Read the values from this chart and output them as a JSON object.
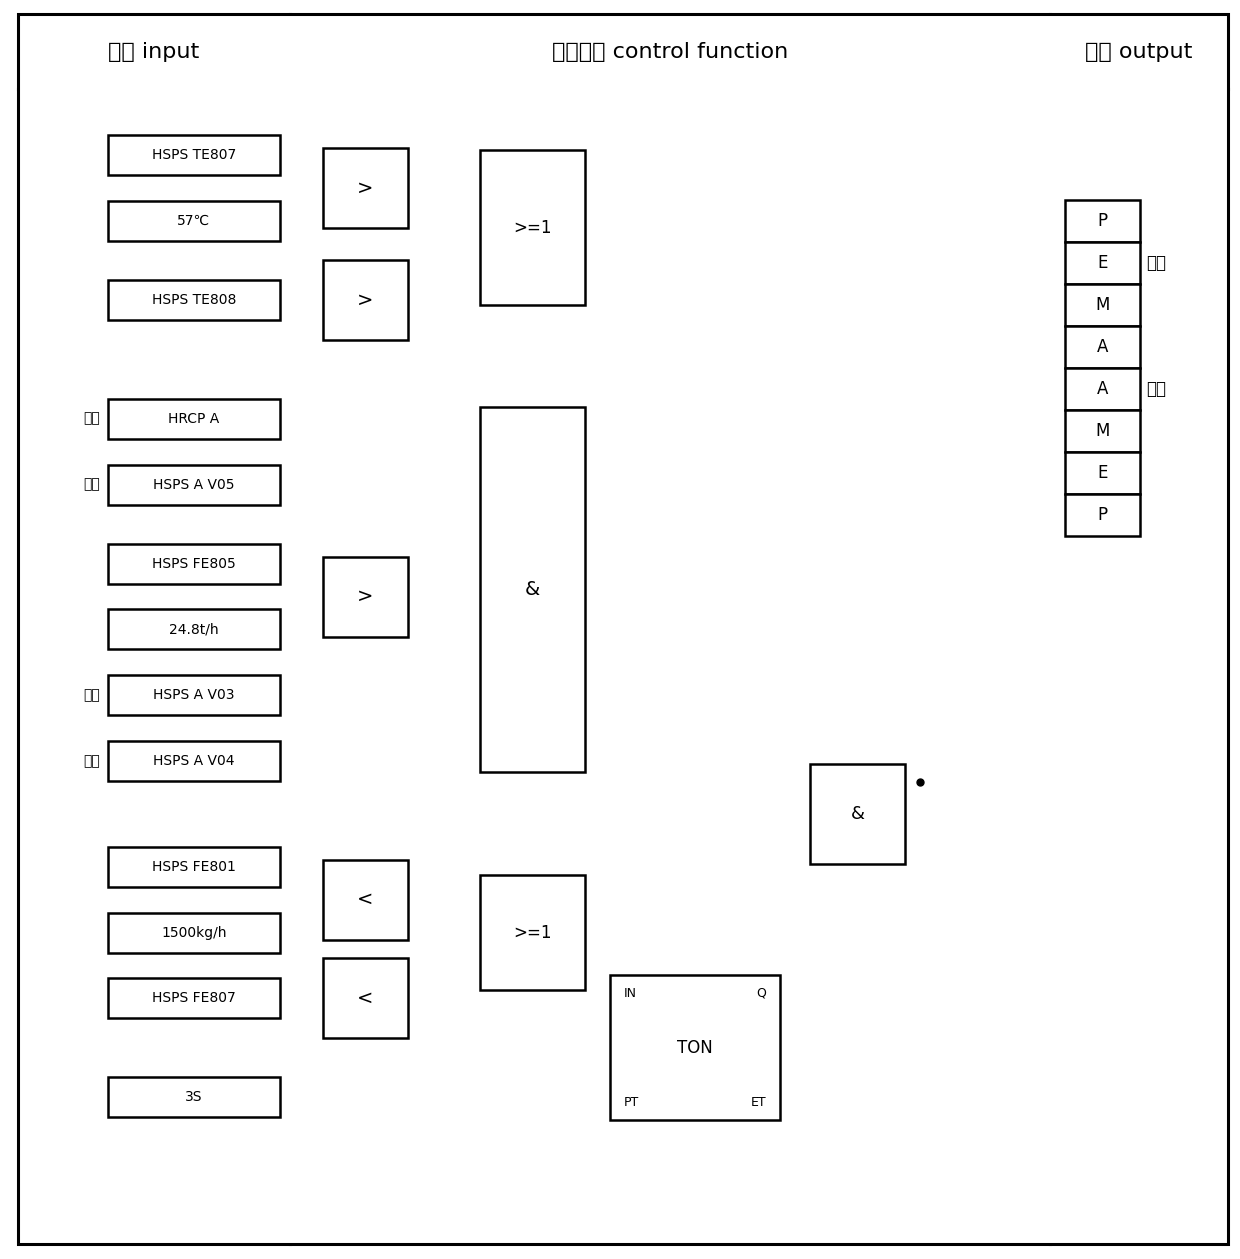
{
  "header_input": "输入 input",
  "header_control": "控制功能 control function",
  "header_output": "输出 output",
  "bg_color": "#ffffff",
  "lw": 1.8,
  "inputs": [
    {
      "text": "HSPS TE807",
      "row": 1,
      "prefix": ""
    },
    {
      "text": "57℃",
      "row": 2,
      "prefix": ""
    },
    {
      "text": "HSPS TE808",
      "row": 3,
      "prefix": ""
    },
    {
      "text": "HRCP A",
      "row": 5,
      "prefix": "启动"
    },
    {
      "text": "HSPS A V05",
      "row": 6,
      "prefix": "关闭"
    },
    {
      "text": "HSPS FE805",
      "row": 7,
      "prefix": ""
    },
    {
      "text": "24.8t/h",
      "row": 8,
      "prefix": ""
    },
    {
      "text": "HSPS A V03",
      "row": 9,
      "prefix": "开通"
    },
    {
      "text": "HSPS A V04",
      "row": 10,
      "prefix": "开通"
    },
    {
      "text": "HSPS FE801",
      "row": 12,
      "prefix": ""
    },
    {
      "text": "1500kg/h",
      "row": 13,
      "prefix": ""
    },
    {
      "text": "HSPS FE807",
      "row": 14,
      "prefix": ""
    },
    {
      "text": "3S",
      "row": 16,
      "prefix": ""
    }
  ],
  "close_labels": [
    "P",
    "E",
    "M",
    "A"
  ],
  "open_labels": [
    "A",
    "M",
    "E",
    "P"
  ],
  "label_guanfa": "关阀",
  "label_kaishi": "开启"
}
